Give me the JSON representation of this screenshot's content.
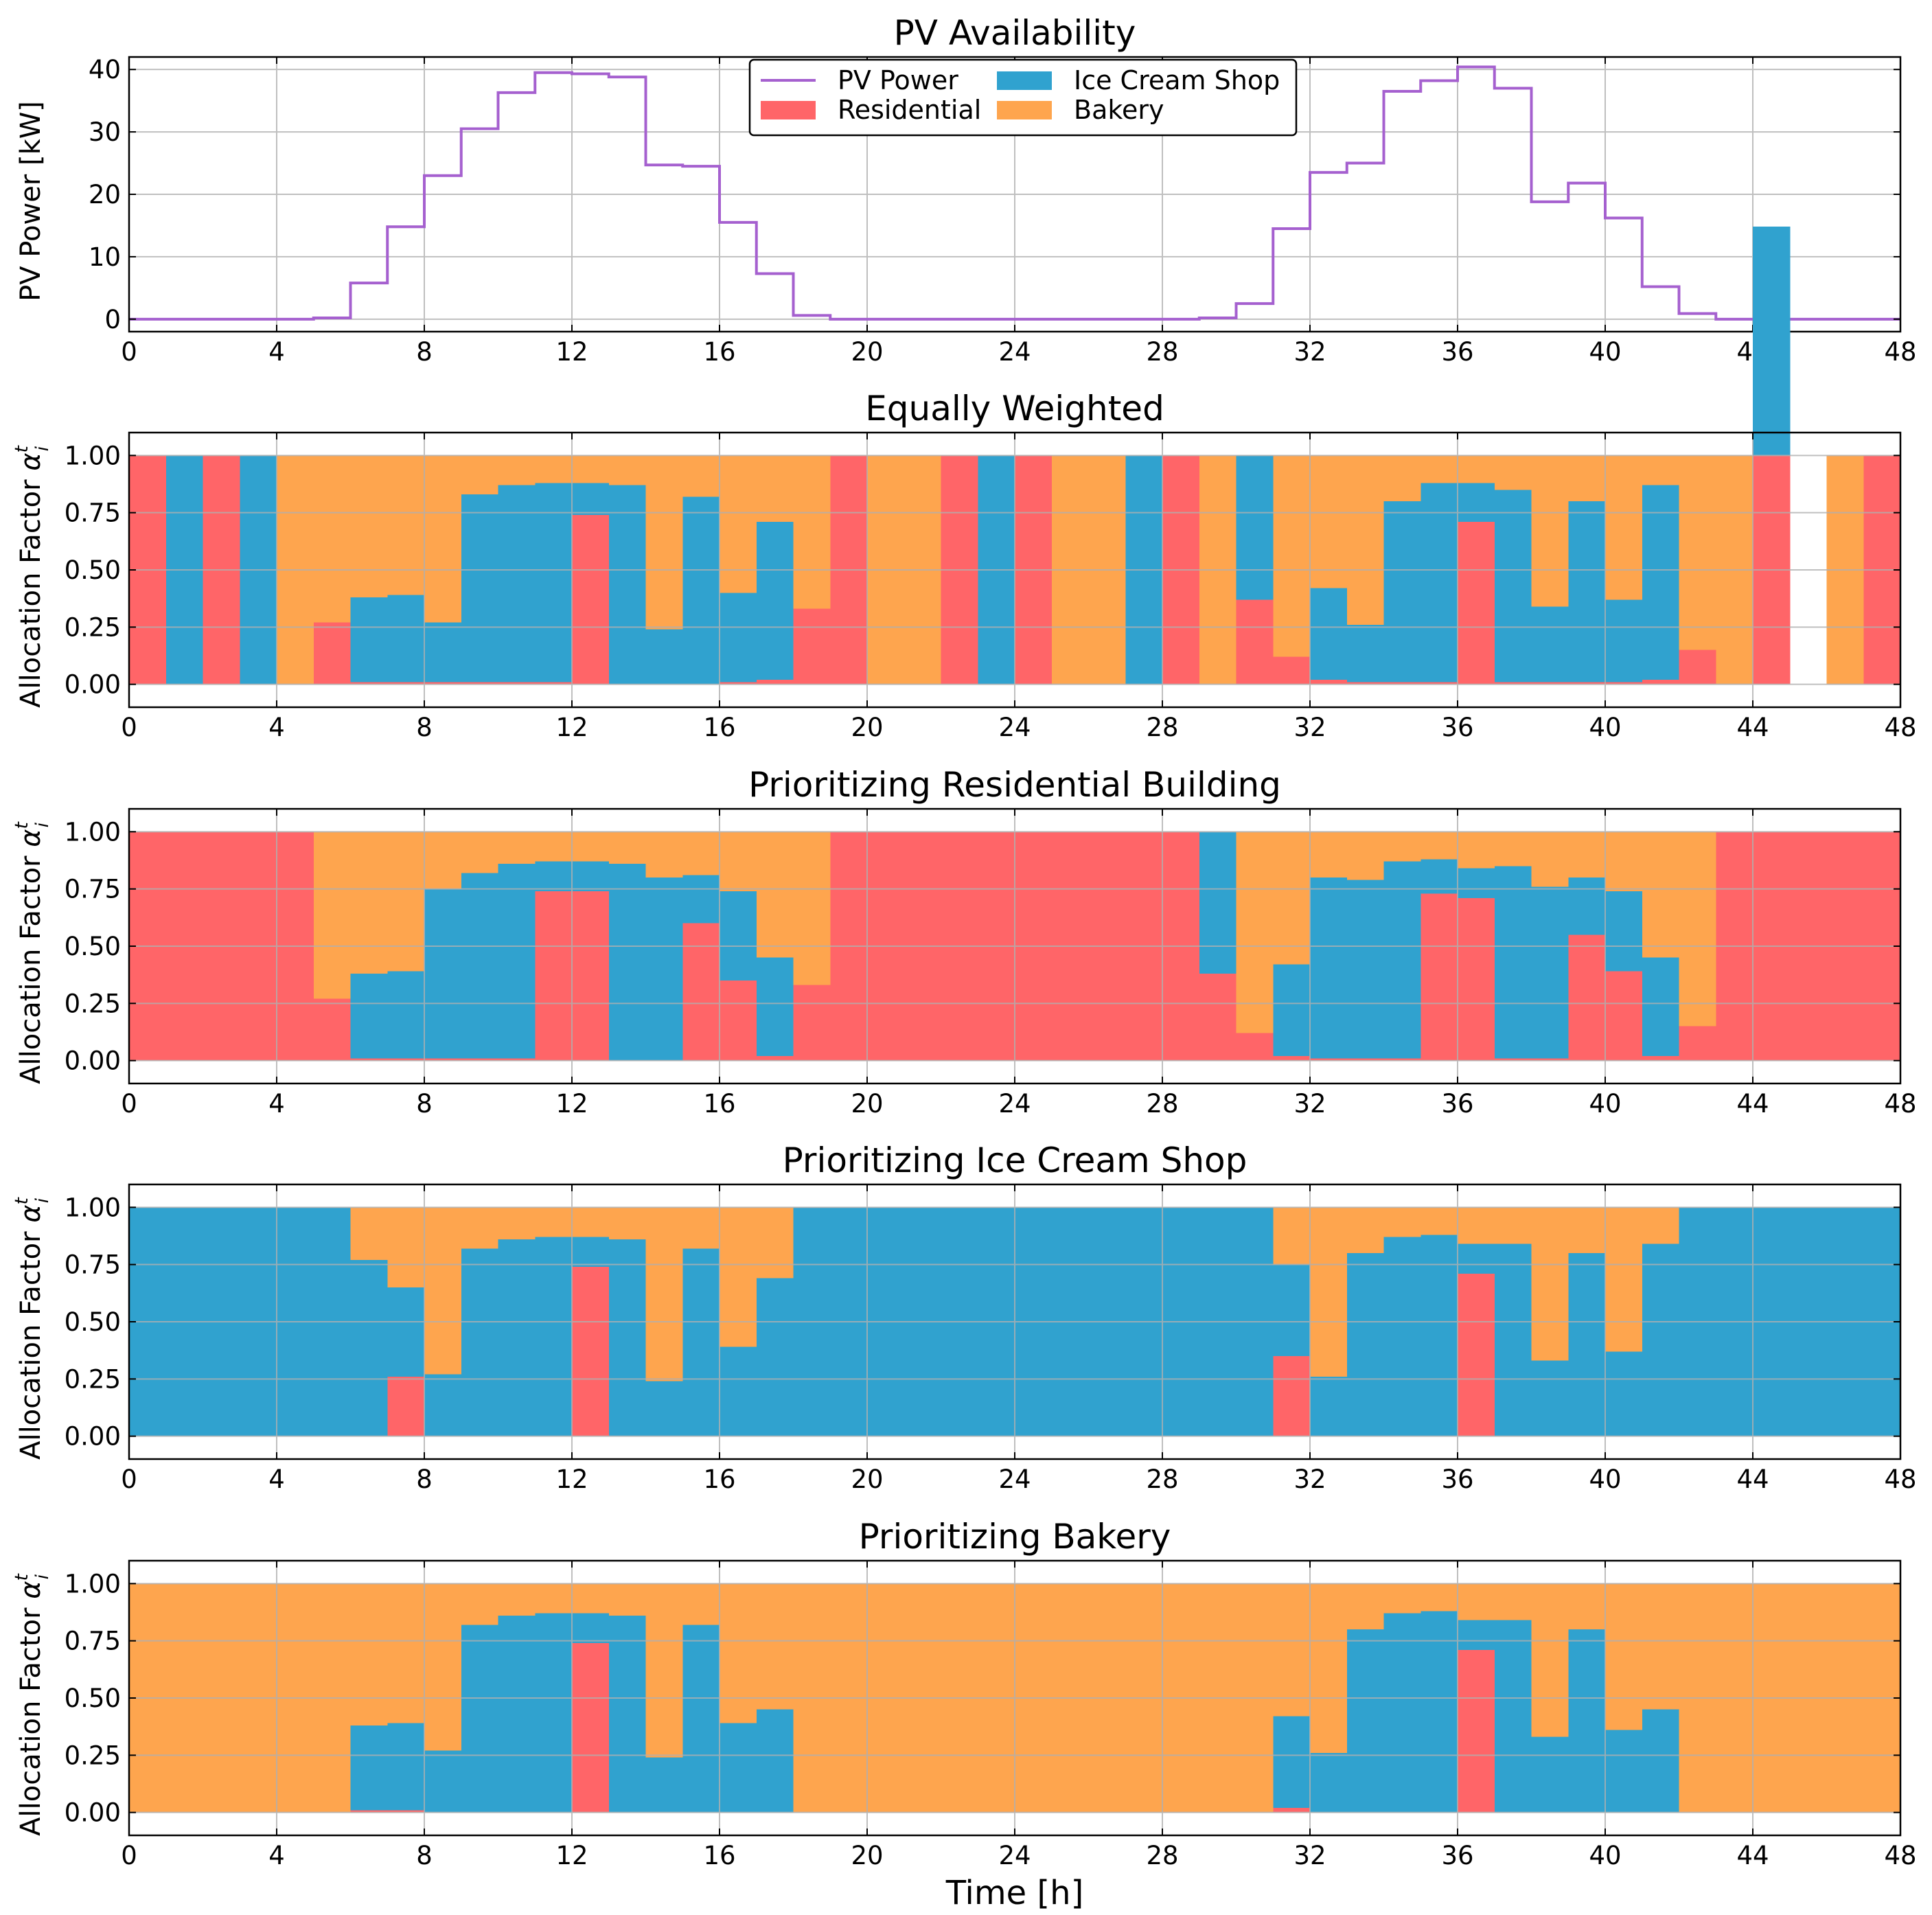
{
  "x_axis": {
    "label": "Time [h]",
    "ticks": [
      "0",
      "4",
      "8",
      "12",
      "16",
      "20",
      "24",
      "28",
      "32",
      "36",
      "40",
      "44",
      "48"
    ]
  },
  "legend": [
    {
      "label": "PV Power",
      "color": "#a560cf",
      "kind": "line"
    },
    {
      "label": "Residential",
      "color": "#ff6568",
      "kind": "patch"
    },
    {
      "label": "Ice Cream Shop",
      "color": "#30a2cf",
      "kind": "patch"
    },
    {
      "label": "Bakery",
      "color": "#fea54e",
      "kind": "patch"
    }
  ],
  "chart_data": [
    {
      "type": "line",
      "title": "PV Availability",
      "ylabel": "PV Power [kW]",
      "xlabel": "",
      "xlim": [
        0,
        48
      ],
      "ylim": [
        -2,
        42
      ],
      "yticks": [
        "0",
        "10",
        "20",
        "30",
        "40"
      ],
      "grid": true,
      "legend_position": "top-center",
      "series": [
        {
          "name": "PV Power",
          "color": "#a560cf",
          "step": "post",
          "values": [
            0,
            0,
            0,
            0,
            0,
            0.2,
            5.8,
            14.8,
            23,
            30.5,
            36.3,
            39.5,
            39.3,
            38.8,
            24.7,
            24.5,
            15.5,
            7.3,
            0.6,
            0,
            0,
            0,
            0,
            0,
            0,
            0,
            0,
            0,
            0,
            0.2,
            2.5,
            14.5,
            23.5,
            25,
            36.5,
            38.2,
            40.4,
            37,
            18.8,
            21.8,
            16.2,
            5.2,
            0.9,
            0,
            0,
            0,
            0,
            0
          ]
        }
      ]
    },
    {
      "type": "bar",
      "title": "Equally Weighted",
      "ylabel": "Allocation Factor α_i^t",
      "xlabel": "",
      "xlim": [
        0,
        48
      ],
      "ylim": [
        -0.1,
        1.1
      ],
      "yticks": [
        "0.00",
        "0.25",
        "0.50",
        "0.75",
        "1.00"
      ],
      "grid": true,
      "series": [
        {
          "name": "Residential",
          "values": [
            1,
            0,
            1,
            0,
            0,
            0.27,
            0.01,
            0.01,
            0.01,
            0.01,
            0.01,
            0.01,
            0.74,
            0,
            0,
            0,
            0.01,
            0.02,
            0.33,
            1,
            0,
            0,
            1,
            0,
            1,
            0,
            0,
            0,
            1,
            0,
            0.37,
            0.12,
            0.02,
            0.01,
            0.01,
            0.01,
            0.71,
            0.01,
            0.01,
            0.01,
            0.01,
            0.02,
            0.15,
            0,
            1,
            0,
            0,
            1
          ]
        },
        {
          "name": "Ice Cream Shop",
          "values": [
            0,
            1,
            0,
            1,
            0,
            0,
            0.37,
            0.38,
            0.26,
            0.82,
            0.86,
            0.87,
            0.14,
            0.87,
            0.24,
            0.82,
            0.39,
            0.69,
            0,
            0,
            0,
            0,
            0,
            1,
            0,
            0,
            0,
            1,
            0,
            0,
            0.63,
            0,
            0.4,
            0.25,
            0.79,
            0.87,
            0.17,
            0.84,
            0.33,
            0.79,
            0.36,
            0.85,
            0,
            0,
            1,
            0,
            0,
            0
          ]
        },
        {
          "name": "Bakery",
          "values": [
            0,
            0,
            0,
            0,
            1,
            0.73,
            0.62,
            0.61,
            0.73,
            0.17,
            0.13,
            0.12,
            0.12,
            0.13,
            0.76,
            0.18,
            0.6,
            0.29,
            0.67,
            0,
            1,
            1,
            0,
            0,
            0,
            1,
            1,
            0,
            0,
            1,
            0,
            0.88,
            0.58,
            0.74,
            0.2,
            0.12,
            0.12,
            0.15,
            0.66,
            0.2,
            0.63,
            0.13,
            0.85,
            1,
            0,
            0,
            1,
            0
          ]
        }
      ]
    },
    {
      "type": "bar",
      "title": "Prioritizing Residential Building",
      "ylabel": "Allocation Factor α_i^t",
      "xlabel": "",
      "xlim": [
        0,
        48
      ],
      "ylim": [
        -0.1,
        1.1
      ],
      "yticks": [
        "0.00",
        "0.25",
        "0.50",
        "0.75",
        "1.00"
      ],
      "grid": true,
      "series": [
        {
          "name": "Residential",
          "values": [
            1,
            1,
            1,
            1,
            1,
            0.27,
            0.01,
            0.01,
            0.01,
            0.01,
            0.01,
            0.74,
            0.74,
            0,
            0,
            0.6,
            0.35,
            0.02,
            0.33,
            1,
            1,
            1,
            1,
            1,
            1,
            1,
            1,
            1,
            1,
            0.38,
            0.12,
            0.02,
            0.01,
            0.01,
            0.01,
            0.73,
            0.71,
            0.01,
            0.01,
            0.55,
            0.39,
            0.02,
            0.15,
            1,
            1,
            1,
            1,
            1
          ]
        },
        {
          "name": "Ice Cream Shop",
          "values": [
            0,
            0,
            0,
            0,
            0,
            0,
            0.37,
            0.38,
            0.74,
            0.81,
            0.85,
            0.13,
            0.13,
            0.86,
            0.8,
            0.21,
            0.39,
            0.43,
            0,
            0,
            0,
            0,
            0,
            0,
            0,
            0,
            0,
            0,
            0,
            0.62,
            0,
            0.4,
            0.79,
            0.78,
            0.86,
            0.15,
            0.13,
            0.84,
            0.75,
            0.25,
            0.35,
            0.43,
            0,
            0,
            0,
            0,
            0,
            0
          ]
        },
        {
          "name": "Bakery",
          "values": [
            0,
            0,
            0,
            0,
            0,
            0.73,
            0.62,
            0.61,
            0.25,
            0.18,
            0.14,
            0.13,
            0.13,
            0.14,
            0.2,
            0.19,
            0.26,
            0.55,
            0.67,
            0,
            0,
            0,
            0,
            0,
            0,
            0,
            0,
            0,
            0,
            0,
            0.88,
            0.58,
            0.2,
            0.21,
            0.13,
            0.12,
            0.16,
            0.15,
            0.24,
            0.2,
            0.26,
            0.55,
            0.85,
            0,
            0,
            0,
            0,
            0
          ]
        }
      ]
    },
    {
      "type": "bar",
      "title": "Prioritizing Ice Cream Shop",
      "ylabel": "Allocation Factor α_i^t",
      "xlabel": "",
      "xlim": [
        0,
        48
      ],
      "ylim": [
        -0.1,
        1.1
      ],
      "yticks": [
        "0.00",
        "0.25",
        "0.50",
        "0.75",
        "1.00"
      ],
      "grid": true,
      "series": [
        {
          "name": "Residential",
          "values": [
            0,
            0,
            0,
            0,
            0,
            0,
            0,
            0.26,
            0,
            0,
            0,
            0,
            0.74,
            0,
            0,
            0,
            0,
            0,
            0,
            0,
            0,
            0,
            0,
            0,
            0,
            0,
            0,
            0,
            0,
            0,
            0,
            0.35,
            0,
            0,
            0,
            0,
            0.71,
            0,
            0,
            0,
            0,
            0,
            0,
            0,
            0,
            0,
            0,
            0
          ]
        },
        {
          "name": "Ice Cream Shop",
          "values": [
            1,
            1,
            1,
            1,
            1,
            1,
            0.77,
            0.39,
            0.27,
            0.82,
            0.86,
            0.87,
            0.13,
            0.86,
            0.24,
            0.82,
            0.39,
            0.69,
            1,
            1,
            1,
            1,
            1,
            1,
            1,
            1,
            1,
            1,
            1,
            1,
            1,
            0.4,
            0.26,
            0.8,
            0.87,
            0.88,
            0.13,
            0.84,
            0.33,
            0.8,
            0.37,
            0.84,
            1,
            1,
            1,
            1,
            1,
            1
          ]
        },
        {
          "name": "Bakery",
          "values": [
            0,
            0,
            0,
            0,
            0,
            0,
            0.23,
            0.35,
            0.73,
            0.18,
            0.14,
            0.13,
            0.13,
            0.14,
            0.76,
            0.18,
            0.61,
            0.31,
            0,
            0,
            0,
            0,
            0,
            0,
            0,
            0,
            0,
            0,
            0,
            0,
            0,
            0.25,
            0.74,
            0.2,
            0.13,
            0.12,
            0.16,
            0.16,
            0.67,
            0.2,
            0.63,
            0.16,
            0,
            0,
            0,
            0,
            0,
            0
          ]
        }
      ]
    },
    {
      "type": "bar",
      "title": "Prioritizing Bakery",
      "ylabel": "Allocation Factor α_i^t",
      "xlabel": "Time [h]",
      "xlim": [
        0,
        48
      ],
      "ylim": [
        -0.1,
        1.1
      ],
      "yticks": [
        "0.00",
        "0.25",
        "0.50",
        "0.75",
        "1.00"
      ],
      "grid": true,
      "series": [
        {
          "name": "Residential",
          "values": [
            0,
            0,
            0,
            0,
            0,
            0,
            0.01,
            0.01,
            0,
            0,
            0,
            0,
            0.74,
            0,
            0,
            0,
            0,
            0,
            0,
            0,
            0,
            0,
            0,
            0,
            0,
            0,
            0,
            0,
            0,
            0,
            0,
            0.02,
            0,
            0,
            0,
            0,
            0.71,
            0,
            0,
            0,
            0,
            0,
            0,
            0,
            0,
            0,
            0,
            0
          ]
        },
        {
          "name": "Ice Cream Shop",
          "values": [
            0,
            0,
            0,
            0,
            0,
            0,
            0.37,
            0.38,
            0.27,
            0.82,
            0.86,
            0.87,
            0.13,
            0.86,
            0.24,
            0.82,
            0.39,
            0.45,
            0,
            0,
            0,
            0,
            0,
            0,
            0,
            0,
            0,
            0,
            0,
            0,
            0,
            0.4,
            0.26,
            0.8,
            0.87,
            0.88,
            0.13,
            0.84,
            0.33,
            0.8,
            0.36,
            0.45,
            0,
            0,
            0,
            0,
            0,
            0
          ]
        },
        {
          "name": "Bakery",
          "values": [
            1,
            1,
            1,
            1,
            1,
            1,
            0.62,
            0.61,
            0.73,
            0.18,
            0.14,
            0.13,
            0.13,
            0.14,
            0.76,
            0.18,
            0.61,
            0.55,
            1,
            1,
            1,
            1,
            1,
            1,
            1,
            1,
            1,
            1,
            1,
            1,
            1,
            0.58,
            0.74,
            0.2,
            0.13,
            0.12,
            0.16,
            0.16,
            0.67,
            0.2,
            0.64,
            0.55,
            1,
            1,
            1,
            1,
            1,
            1
          ]
        }
      ]
    }
  ]
}
